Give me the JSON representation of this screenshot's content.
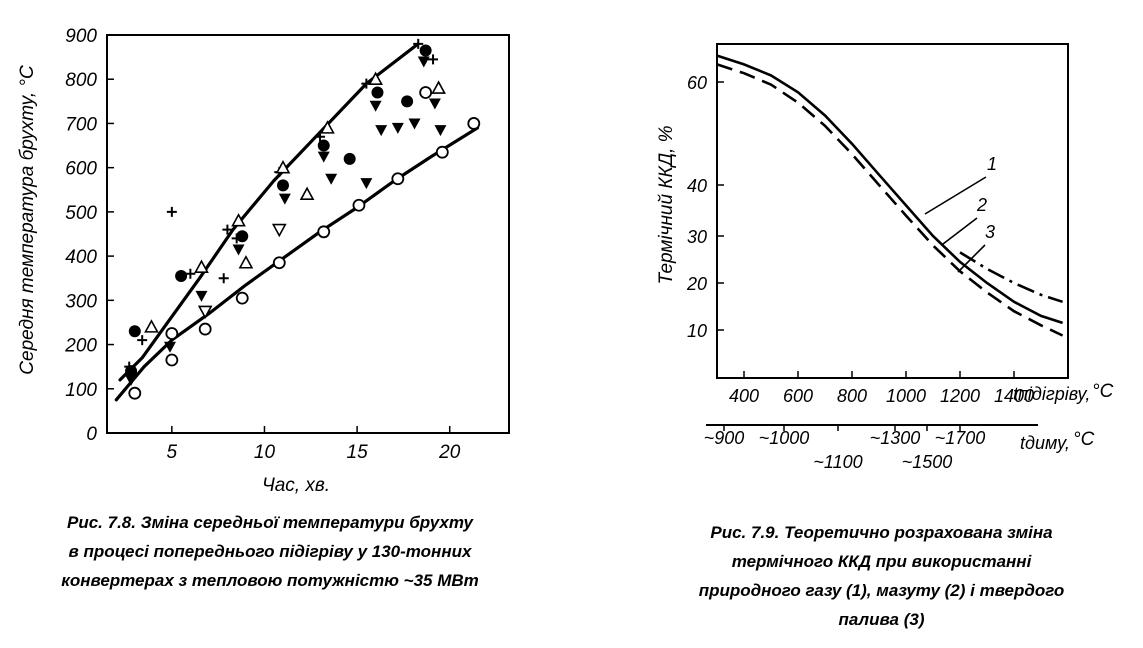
{
  "figures": [
    {
      "caption": [
        "Рис. 7.8. Зміна середньої температури брухту",
        "в процесі попереднього підігріву у 130-тонних",
        "конвертерах з тепловою потужністю ~35 МВт"
      ]
    },
    {
      "caption": [
        "Рис. 7.9. Теоретично розрахована зміна",
        "термічного ККД при використанні",
        "природного газу (1), мазуту (2) і твердого",
        "палива (3)"
      ]
    }
  ],
  "chart_data": [
    {
      "type": "scatter",
      "title": "",
      "xlabel": "Час, хв.",
      "ylabel": "Середня температура брухту, °С",
      "xlim": [
        1.5,
        23.2
      ],
      "ylim": [
        0,
        900
      ],
      "x_ticks": [
        5,
        10,
        15,
        20
      ],
      "y_ticks": [
        0,
        100,
        200,
        300,
        400,
        500,
        600,
        700,
        800,
        900
      ],
      "grid": false,
      "series": [
        {
          "marker": "plus",
          "points": [
            [
              2.7,
              150
            ],
            [
              3.4,
              210
            ],
            [
              5,
              500
            ],
            [
              6,
              360
            ],
            [
              7.8,
              350
            ],
            [
              8,
              460
            ],
            [
              8.5,
              440
            ],
            [
              10.8,
              590
            ],
            [
              13,
              670
            ],
            [
              15.5,
              790
            ],
            [
              18.3,
              880
            ],
            [
              19.1,
              845
            ]
          ]
        },
        {
          "marker": "triangle-up",
          "points": [
            [
              3.9,
              240
            ],
            [
              6.6,
              375
            ],
            [
              8.6,
              480
            ],
            [
              9,
              385
            ],
            [
              11,
              600
            ],
            [
              12.3,
              540
            ],
            [
              13.4,
              690
            ],
            [
              16,
              800
            ],
            [
              19.4,
              780
            ]
          ]
        },
        {
          "marker": "filled-circle",
          "points": [
            [
              2.8,
              140
            ],
            [
              3,
              230
            ],
            [
              5.5,
              355
            ],
            [
              8.8,
              445
            ],
            [
              11,
              560
            ],
            [
              13.2,
              650
            ],
            [
              14.6,
              620
            ],
            [
              16.1,
              770
            ],
            [
              17.7,
              750
            ],
            [
              18.7,
              865
            ]
          ]
        },
        {
          "marker": "filled-triangle-down",
          "points": [
            [
              2.8,
              120
            ],
            [
              4.9,
              195
            ],
            [
              6.6,
              310
            ],
            [
              8.6,
              415
            ],
            [
              11.1,
              530
            ],
            [
              13.2,
              625
            ],
            [
              13.6,
              575
            ],
            [
              15.5,
              565
            ],
            [
              16,
              740
            ],
            [
              16.3,
              685
            ],
            [
              17.2,
              690
            ],
            [
              18.1,
              700
            ],
            [
              18.6,
              840
            ],
            [
              19.2,
              745
            ],
            [
              19.5,
              685
            ]
          ]
        },
        {
          "marker": "open-triangle-down",
          "points": [
            [
              6.8,
              275
            ],
            [
              10.8,
              460
            ]
          ]
        },
        {
          "marker": "open-circle",
          "points": [
            [
              3,
              90
            ],
            [
              5,
              225
            ],
            [
              5,
              165
            ],
            [
              6.8,
              235
            ],
            [
              8.8,
              305
            ],
            [
              10.8,
              385
            ],
            [
              13.2,
              455
            ],
            [
              15.1,
              515
            ],
            [
              17.2,
              575
            ],
            [
              18.7,
              770
            ],
            [
              19.6,
              635
            ],
            [
              21.3,
              700
            ]
          ]
        }
      ],
      "lines": [
        {
          "name": "",
          "x": [
            2.2,
            3.4,
            4.6,
            6.5,
            8.3,
            10.5,
            13,
            15.5,
            18.3
          ],
          "y": [
            120,
            170,
            240,
            350,
            460,
            570,
            680,
            790,
            880
          ]
        },
        {
          "name": "",
          "x": [
            2,
            3.5,
            5,
            7,
            9,
            11,
            13,
            15,
            17,
            19,
            21.5
          ],
          "y": [
            75,
            150,
            210,
            270,
            335,
            395,
            455,
            510,
            570,
            625,
            690
          ]
        }
      ]
    },
    {
      "type": "line",
      "title": "",
      "ylabel": "Термічний ККД, %",
      "xlabel_heating": "tпідігріву,",
      "xlabel_heating_unit": "°С",
      "xlabel_flue": "tдиму,",
      "xlabel_flue_unit": "°С",
      "y_ticks": [
        10,
        20,
        30,
        40,
        60
      ],
      "y_tick_labels": [
        "10",
        "20",
        "30",
        "40",
        "60"
      ],
      "x_heating_ticks": [
        400,
        600,
        800,
        1000,
        1200,
        1400
      ],
      "x_flue_ticks": [
        "~900",
        "~1000",
        "~1100",
        "~1300",
        "~1500",
        "~1700"
      ],
      "x_range": [
        300,
        1600
      ],
      "series": [
        {
          "name": "1",
          "style": "dashed",
          "x": [
            300,
            400,
            500,
            600,
            700,
            800,
            900,
            1000,
            1100,
            1200,
            1300,
            1400,
            1500,
            1580
          ],
          "y": [
            64,
            62,
            59.5,
            56,
            51.5,
            46,
            40,
            34,
            28,
            22.5,
            18,
            14,
            11,
            9
          ]
        },
        {
          "name": "2",
          "style": "solid",
          "x": [
            300,
            400,
            500,
            600,
            700,
            800,
            900,
            1000,
            1100,
            1200,
            1300,
            1400,
            1500,
            1580
          ],
          "y": [
            66,
            64,
            61.5,
            58,
            53.5,
            48,
            42,
            36,
            30,
            24.5,
            20,
            16,
            13,
            11.5
          ]
        },
        {
          "name": "3",
          "style": "dash-dot",
          "x": [
            1200,
            1300,
            1400,
            1500,
            1580
          ],
          "y": [
            26.5,
            23,
            20,
            17.5,
            16
          ]
        }
      ]
    }
  ]
}
